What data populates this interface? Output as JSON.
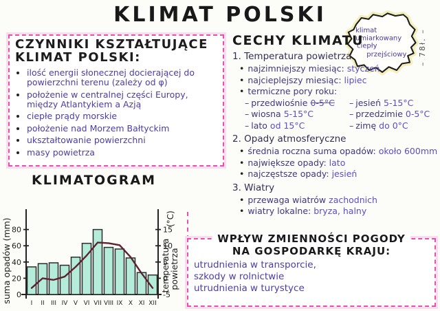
{
  "page": {
    "title": "KLIMAT POLSKI",
    "margin_note": "– 78ł. –"
  },
  "map_badge": {
    "lines": [
      "klimat",
      "umiarkowany",
      "ciepły",
      "przejściowy"
    ]
  },
  "factors_box": {
    "title_line1": "CZYNNIKI KSZTAŁTUJĄCE",
    "title_line2": "KLIMAT POLSKI:",
    "items": [
      "ilość energii słonecznej docierającej do powierzchni terenu (zależy od φ)",
      "położenie w centralnej części Europy, między Atlantykiem a Azją",
      "ciepłe prądy morskie",
      "położenie nad Morzem Bałtyckim",
      "ukształtowanie powierzchni",
      "masy powietrza"
    ]
  },
  "features": {
    "title": "CECHY KLIMATU",
    "temperature": {
      "heading": "1. Temperatura powietrza",
      "coldest": {
        "label": "najzimniejszy miesiąc:",
        "value": "styczeń"
      },
      "warmest": {
        "label": "najcieplejszy miesiąc:",
        "value": "lipiec"
      },
      "thermal_label": "termiczne pory roku:",
      "seasons_left": [
        {
          "name": "przedwiośnie",
          "temp": "0-5°C"
        },
        {
          "name": "wiosna",
          "temp": "5-15°C"
        },
        {
          "name": "lato",
          "temp": "od 15°C"
        }
      ],
      "seasons_right": [
        {
          "name": "jesień",
          "temp": "5-15°C"
        },
        {
          "name": "przedzimie",
          "temp": "0-5°C"
        },
        {
          "name": "zimę",
          "temp": "do 0°C"
        }
      ]
    },
    "precipitation": {
      "heading": "2. Opady atmosferyczne",
      "items": [
        {
          "label": "średnia roczna suma opadów:",
          "value": "około 600mm"
        },
        {
          "label": "największe opady:",
          "value": "lato"
        },
        {
          "label": "najczęstsze opady:",
          "value": "jesień"
        }
      ]
    },
    "winds": {
      "heading": "3. Wiatry",
      "items": [
        {
          "label": "przewaga wiatrów",
          "value": "zachodnich"
        },
        {
          "label": "wiatry lokalne:",
          "value": "bryza, halny"
        }
      ]
    }
  },
  "impact_box": {
    "title_line1": "WPŁYW ZMIENNOŚCI POGODY",
    "title_line2": "NA GOSPODARKĘ KRAJU:",
    "lines": [
      "utrudnienia w transporcie,",
      "szkody w rolnictwie",
      "utrudnienia w turystyce"
    ]
  },
  "colors": {
    "accent_pink": "#e84fae",
    "pink_glow": "#fadcee",
    "ink_purple": "#3f3781",
    "answer_blue": "#5b4ec9",
    "heading_black": "#191919",
    "map_highlight": "#f3eebb"
  },
  "chart_data": {
    "type": "bar",
    "title": "KLIMATOGRAM",
    "categories": [
      "I",
      "II",
      "III",
      "IV",
      "V",
      "VI",
      "VII",
      "VIII",
      "IX",
      "X",
      "XI",
      "XII"
    ],
    "series": [
      {
        "name": "suma opadów (mm)",
        "type": "bar",
        "values": [
          34,
          38,
          39,
          36,
          46,
          63,
          80,
          58,
          56,
          45,
          27,
          24
        ],
        "color": "#b5ecd9"
      },
      {
        "name": "temperatura powietrza (°C)",
        "type": "line",
        "values": [
          -3,
          0,
          -0.5,
          0.5,
          3.5,
          7,
          11,
          10.8,
          10.2,
          6.5,
          1.5,
          -3
        ],
        "color": "#5c2433"
      }
    ],
    "left_axis": {
      "label": "suma opadów (mm)",
      "ticks": [
        0,
        20,
        40,
        60,
        80
      ],
      "range": [
        0,
        100
      ]
    },
    "right_axis": {
      "label_lines": [
        "temperatura",
        "powietrza"
      ],
      "unit": "(°C)",
      "ticks": [
        -5,
        0,
        5,
        10,
        15
      ],
      "range": [
        -5,
        20
      ]
    },
    "grid": false,
    "legend": false
  }
}
